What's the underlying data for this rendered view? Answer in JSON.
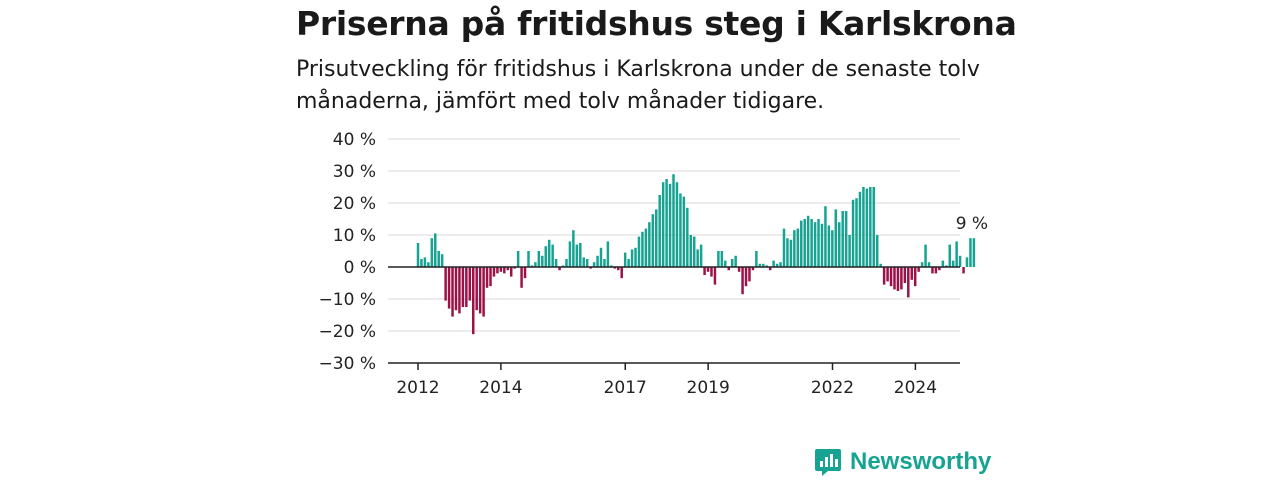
{
  "header": {
    "title": "Priserna på fritidshus steg i Karlskrona",
    "subtitle": "Prisutveckling för fritidshus i Karlskrona under de senaste tolv månaderna, jämfört med tolv månader tidigare."
  },
  "brand": {
    "name": "Newsworthy",
    "color": "#17a392"
  },
  "colors": {
    "positive": "#17a392",
    "negative": "#9c1147",
    "grid": "#d9d9d9",
    "axis": "#222222"
  },
  "chart_data": {
    "type": "bar",
    "title": "Priserna på fritidshus steg i Karlskrona",
    "subtitle": "Prisutveckling för fritidshus i Karlskrona under de senaste tolv månaderna, jämfört med tolv månader tidigare.",
    "ylim": [
      -30,
      40
    ],
    "y_ticks": [
      40,
      30,
      20,
      10,
      0,
      -10,
      -20,
      -30
    ],
    "y_tick_labels": [
      "40 %",
      "30 %",
      "20 %",
      "10 %",
      "0 %",
      "−10 %",
      "−20 %",
      "−30 %"
    ],
    "x_ticks": [
      2012,
      2014,
      2017,
      2019,
      2022,
      2024
    ],
    "x_tick_labels": [
      "2012",
      "2014",
      "2017",
      "2019",
      "2022",
      "2024"
    ],
    "x_range": [
      2012,
      2025.75
    ],
    "x_start": 2012.0,
    "x_step": 0.0833,
    "unit": "%",
    "last_value_label": "9 %",
    "grid": true,
    "values": [
      7.5,
      2.5,
      3.0,
      1.5,
      9.0,
      10.5,
      5.0,
      4.0,
      -10.5,
      -13.0,
      -15.5,
      -13.5,
      -14.5,
      -12.5,
      -12.5,
      -10.5,
      -21.0,
      -13.5,
      -14.5,
      -15.5,
      -6.5,
      -6.0,
      -3.0,
      -2.0,
      -1.5,
      -2.0,
      -1.0,
      -3.0,
      -0.5,
      5.0,
      -6.5,
      -3.5,
      5.0,
      0.5,
      1.5,
      5.0,
      3.5,
      6.5,
      8.5,
      7.0,
      2.5,
      -1.0,
      0.5,
      2.5,
      8.0,
      11.5,
      7.0,
      7.5,
      3.0,
      2.5,
      -0.5,
      1.5,
      3.5,
      6.0,
      2.5,
      8.0,
      0.5,
      -0.5,
      -1.0,
      -3.5,
      4.5,
      2.5,
      5.5,
      6.0,
      9.5,
      11.0,
      12.0,
      14.0,
      16.5,
      18.0,
      22.5,
      26.5,
      27.5,
      26.0,
      29.0,
      26.5,
      23.0,
      22.0,
      18.5,
      10.0,
      9.5,
      5.5,
      7.0,
      -2.5,
      -1.5,
      -3.0,
      -5.5,
      5.0,
      5.0,
      2.0,
      -1.0,
      2.5,
      3.5,
      -1.5,
      -8.5,
      -6.0,
      -4.5,
      -1.0,
      5.0,
      1.0,
      1.0,
      0.5,
      -1.0,
      2.0,
      1.0,
      1.5,
      12.0,
      9.0,
      8.5,
      11.5,
      12.0,
      14.5,
      15.0,
      16.0,
      15.0,
      14.0,
      15.0,
      13.5,
      19.0,
      13.0,
      11.5,
      18.0,
      14.0,
      17.5,
      17.5,
      10.0,
      21.0,
      21.5,
      23.5,
      25.0,
      24.5,
      25.0,
      25.0,
      10.0,
      1.0,
      -5.5,
      -4.5,
      -6.0,
      -7.0,
      -7.5,
      -7.0,
      -5.0,
      -9.5,
      -4.0,
      -6.0,
      -1.5,
      1.5,
      7.0,
      1.5,
      -2.0,
      -2.0,
      -1.0,
      2.0,
      0.5,
      7.0,
      2.0,
      8.0,
      3.5,
      -2.0,
      3.0,
      9.0,
      9.0
    ]
  }
}
